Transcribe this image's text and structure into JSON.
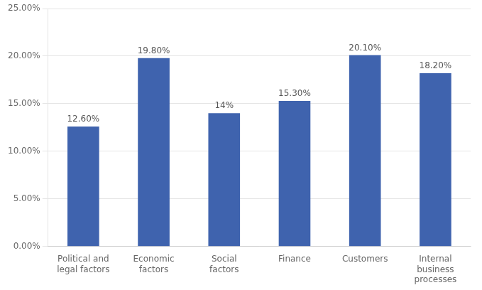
{
  "chart_data": {
    "type": "bar",
    "categories": [
      "Political and\nlegal factors",
      "Economic\nfactors",
      "Social\nfactors",
      "Finance",
      "Customers",
      "Internal\nbusiness\nprocesses"
    ],
    "values": [
      0.126,
      0.198,
      0.14,
      0.153,
      0.201,
      0.182
    ],
    "value_labels": [
      "12.60%",
      "19.80%",
      "14%",
      "15.30%",
      "20.10%",
      "18.20%"
    ],
    "color": "#3f63ae",
    "ylim": [
      0,
      0.25
    ],
    "yticks": [
      {
        "value": 0.0,
        "label": "0.00%"
      },
      {
        "value": 0.05,
        "label": "5.00%"
      },
      {
        "value": 0.1,
        "label": "10.00%"
      },
      {
        "value": 0.15,
        "label": "15.00%"
      },
      {
        "value": 0.2,
        "label": "20.00%"
      },
      {
        "value": 0.25,
        "label": "25.00%"
      }
    ],
    "grid": true,
    "data_labels": true
  }
}
